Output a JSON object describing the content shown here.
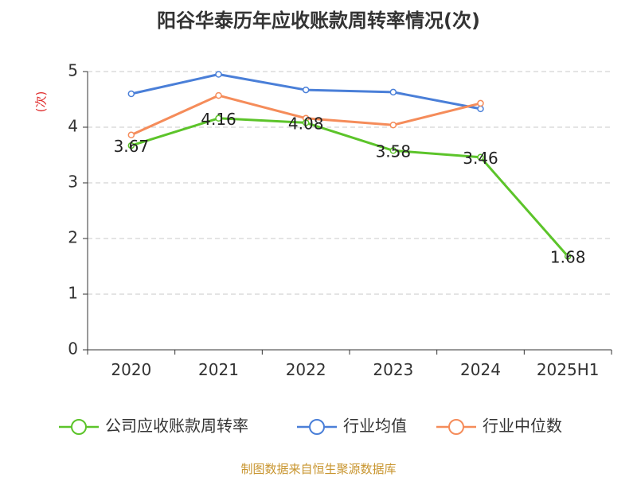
{
  "chart_data": {
    "type": "line",
    "title": "阳谷华泰历年应收账款周转率情况(次)",
    "ylabel": "(次)",
    "xlabel": "",
    "categories": [
      "2020",
      "2021",
      "2022",
      "2023",
      "2024",
      "2025H1"
    ],
    "ylim": [
      0,
      5
    ],
    "yticks": [
      0,
      1,
      2,
      3,
      4,
      5
    ],
    "grid": true,
    "legend_position": "bottom",
    "series": [
      {
        "name": "公司应收账款周转率",
        "color": "#5cc42a",
        "values": [
          3.67,
          4.16,
          4.08,
          3.58,
          3.46,
          1.68
        ],
        "labels": [
          "3.67",
          "4.16",
          "4.08",
          "3.58",
          "3.46",
          "1.68"
        ]
      },
      {
        "name": "行业均值",
        "color": "#4a7fd8",
        "values": [
          4.6,
          4.95,
          4.67,
          4.63,
          4.33,
          null
        ]
      },
      {
        "name": "行业中位数",
        "color": "#f58c5a",
        "values": [
          3.86,
          4.57,
          4.16,
          4.04,
          4.43,
          null
        ]
      }
    ],
    "source": "制图数据来自恒生聚源数据库"
  }
}
